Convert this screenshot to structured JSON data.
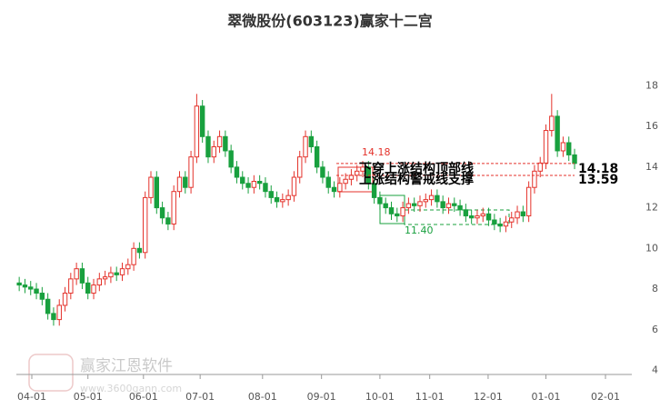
{
  "chart_data": {
    "type": "candlestick",
    "title": "翠微股份(603123)赢家十二宫",
    "up_color": "#e4322b",
    "down_color": "#18a03e",
    "xlim": [
      -0.5,
      107
    ],
    "xticks": [
      {
        "value": 2.2,
        "label": "04-01"
      },
      {
        "value": 12.0,
        "label": "05-01"
      },
      {
        "value": 21.7,
        "label": "06-01"
      },
      {
        "value": 31.6,
        "label": "07-01"
      },
      {
        "value": 42.5,
        "label": "08-01"
      },
      {
        "value": 52.8,
        "label": "09-01"
      },
      {
        "value": 63.0,
        "label": "10-01"
      },
      {
        "value": 71.7,
        "label": "11-01"
      },
      {
        "value": 81.9,
        "label": "12-01"
      },
      {
        "value": 92.0,
        "label": "01-01"
      },
      {
        "value": 102.4,
        "label": "02-01"
      }
    ],
    "ylim": [
      3.8,
      19
    ],
    "yticks": [
      4,
      6,
      8,
      10,
      12,
      14,
      16,
      18
    ],
    "open": [
      8.3,
      8.2,
      8.1,
      8.0,
      7.8,
      7.5,
      6.8,
      6.5,
      7.2,
      7.8,
      8.5,
      9.0,
      8.3,
      7.8,
      8.2,
      8.5,
      8.6,
      8.8,
      8.7,
      9.0,
      9.2,
      10.0,
      9.8,
      12.5,
      13.5,
      12.0,
      11.5,
      11.2,
      12.8,
      13.5,
      13.0,
      14.5,
      17.0,
      15.5,
      14.5,
      15.0,
      15.5,
      14.8,
      14.0,
      13.5,
      13.2,
      13.0,
      13.3,
      13.2,
      12.8,
      12.5,
      12.3,
      12.4,
      12.6,
      13.5,
      14.5,
      15.5,
      15.0,
      14.0,
      13.5,
      13.0,
      12.8,
      13.2,
      13.4,
      13.6,
      13.8,
      14.0,
      13.2,
      12.5,
      12.2,
      12.0,
      11.7,
      11.6,
      12.0,
      12.2,
      12.1,
      12.3,
      12.4,
      12.6,
      12.3,
      12.0,
      12.2,
      12.1,
      11.9,
      11.6,
      11.5,
      11.6,
      11.7,
      11.4,
      11.2,
      11.1,
      11.3,
      11.5,
      11.8,
      11.6,
      13.0,
      13.8,
      14.2,
      15.8,
      16.5,
      14.8,
      15.2,
      14.6
    ],
    "high": [
      8.6,
      8.5,
      8.4,
      8.3,
      8.1,
      7.8,
      7.1,
      7.5,
      8.1,
      8.8,
      9.3,
      9.3,
      8.6,
      8.5,
      8.8,
      8.9,
      9.1,
      9.1,
      9.3,
      9.5,
      10.3,
      10.3,
      12.8,
      13.8,
      13.8,
      12.3,
      11.8,
      13.1,
      13.8,
      13.8,
      14.8,
      17.6,
      17.3,
      15.8,
      15.3,
      15.8,
      15.8,
      15.1,
      14.3,
      13.8,
      13.5,
      13.6,
      13.6,
      13.5,
      13.1,
      12.8,
      12.7,
      12.9,
      13.8,
      14.8,
      15.8,
      15.8,
      15.3,
      14.3,
      13.8,
      13.3,
      13.5,
      13.7,
      13.9,
      14.1,
      14.3,
      14.3,
      13.5,
      12.8,
      12.5,
      12.3,
      12.0,
      12.3,
      12.5,
      12.5,
      12.6,
      12.7,
      12.9,
      12.9,
      12.6,
      12.5,
      12.5,
      12.4,
      12.2,
      11.9,
      11.9,
      12.0,
      12.0,
      11.7,
      11.5,
      11.6,
      11.8,
      12.1,
      12.1,
      13.3,
      14.1,
      14.5,
      16.1,
      17.6,
      16.8,
      15.5,
      15.5,
      14.9
    ],
    "low": [
      7.9,
      7.8,
      7.7,
      7.5,
      7.2,
      6.5,
      6.2,
      6.2,
      6.9,
      7.5,
      8.2,
      8.0,
      7.5,
      7.5,
      7.9,
      8.2,
      8.3,
      8.4,
      8.4,
      8.7,
      8.9,
      9.5,
      9.5,
      12.2,
      11.7,
      11.2,
      10.9,
      10.9,
      12.5,
      12.7,
      12.7,
      14.2,
      15.2,
      14.2,
      14.2,
      14.7,
      14.5,
      13.7,
      13.2,
      12.9,
      12.7,
      12.7,
      12.9,
      12.5,
      12.2,
      12.0,
      12.0,
      12.1,
      12.3,
      13.2,
      14.2,
      14.7,
      13.7,
      13.2,
      12.7,
      12.5,
      12.5,
      12.9,
      13.1,
      13.3,
      13.5,
      12.9,
      12.2,
      11.9,
      11.7,
      11.4,
      11.3,
      11.3,
      11.7,
      11.8,
      11.8,
      12.0,
      12.1,
      12.0,
      11.7,
      11.7,
      11.8,
      11.6,
      11.3,
      11.2,
      11.2,
      11.3,
      11.1,
      10.9,
      10.8,
      10.8,
      11.0,
      11.2,
      11.3,
      11.3,
      12.7,
      13.5,
      13.9,
      15.5,
      14.5,
      14.5,
      14.3,
      13.9
    ],
    "close": [
      8.2,
      8.1,
      8.0,
      7.8,
      7.5,
      6.8,
      6.5,
      7.2,
      7.8,
      8.5,
      9.0,
      8.3,
      7.8,
      8.2,
      8.5,
      8.6,
      8.8,
      8.7,
      9.0,
      9.2,
      10.0,
      9.8,
      12.5,
      13.5,
      12.0,
      11.5,
      11.2,
      12.8,
      13.5,
      13.0,
      14.5,
      17.0,
      15.5,
      14.5,
      15.0,
      15.5,
      14.8,
      14.0,
      13.5,
      13.2,
      13.0,
      13.3,
      13.2,
      12.8,
      12.5,
      12.3,
      12.4,
      12.6,
      13.5,
      14.5,
      15.5,
      15.0,
      14.0,
      13.5,
      13.0,
      12.8,
      13.2,
      13.4,
      13.6,
      13.8,
      14.0,
      13.2,
      12.5,
      12.2,
      12.0,
      11.7,
      11.6,
      12.0,
      12.2,
      12.1,
      12.3,
      12.4,
      12.6,
      12.3,
      12.0,
      12.2,
      12.1,
      11.9,
      11.6,
      11.5,
      11.6,
      11.7,
      11.4,
      11.2,
      11.1,
      11.3,
      11.5,
      11.8,
      11.6,
      13.0,
      13.8,
      14.2,
      15.8,
      16.5,
      14.8,
      15.2,
      14.6,
      14.18
    ],
    "levels": [
      {
        "label": "下穿上涨结构顶部线",
        "value": 14.18,
        "color": "#e4322b"
      },
      {
        "label": "上涨结构警戒线支撑",
        "value": 13.59,
        "color": "#e4322b"
      }
    ],
    "price_marks": [
      {
        "value": 14.18,
        "color": "#e4322b"
      },
      {
        "value": 11.4,
        "label": "11.40",
        "color": "#18a03e"
      }
    ],
    "watermark": "赢家江恩软件",
    "watermark_url": "www.3600gann.com"
  }
}
